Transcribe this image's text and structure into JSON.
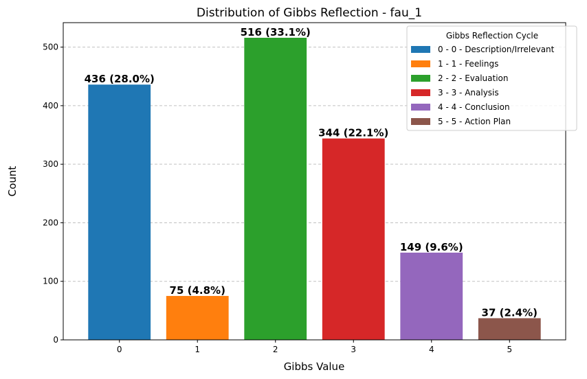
{
  "chart_data": {
    "type": "bar",
    "title": "Distribution of Gibbs Reflection - fau_1",
    "xlabel": "Gibbs Value",
    "ylabel": "Count",
    "categories": [
      "0",
      "1",
      "2",
      "3",
      "4",
      "5"
    ],
    "values": [
      436,
      75,
      516,
      344,
      149,
      37
    ],
    "bar_labels": [
      "436 (28.0%)",
      "75 (4.8%)",
      "516 (33.1%)",
      "344 (22.1%)",
      "149 (9.6%)",
      "37 (2.4%)"
    ],
    "colors": [
      "#1f77b4",
      "#ff7f0e",
      "#2ca02c",
      "#d62728",
      "#9467bd",
      "#8c564b"
    ],
    "ylim": [
      0,
      541.8
    ],
    "yticks": [
      0,
      100,
      200,
      300,
      400,
      500
    ],
    "grid": "y-dashed",
    "legend": {
      "title": "Gibbs Reflection Cycle",
      "placement": "top-right",
      "entries": [
        "0 - 0 - Description/Irrelevant",
        "1 - 1 - Feelings",
        "2 - 2 - Evaluation",
        "3 - 3 - Analysis",
        "4 - 4 - Conclusion",
        "5 - 5 - Action Plan"
      ]
    }
  }
}
